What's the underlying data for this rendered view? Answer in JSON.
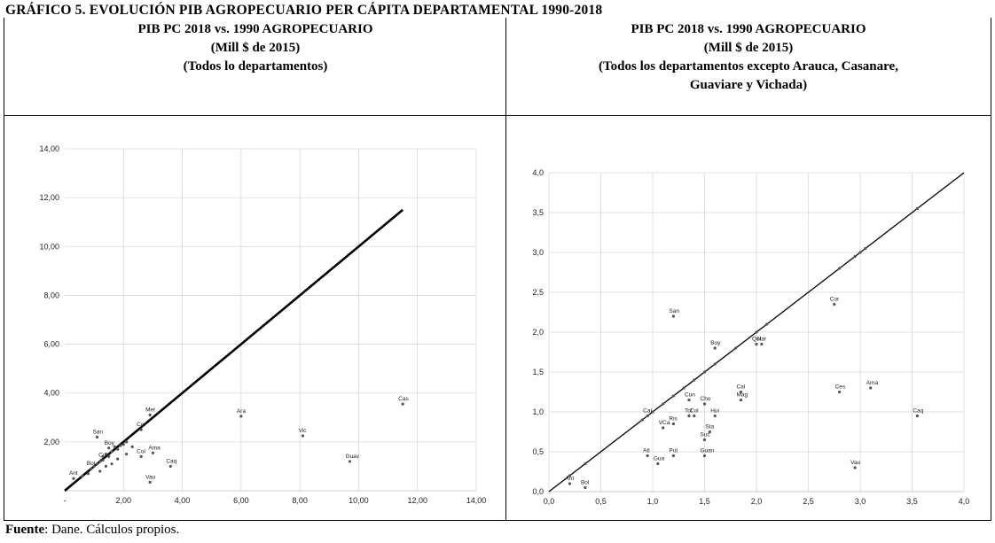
{
  "title": "GRÁFICO 5. EVOLUCIÓN PIB AGROPECUARIO PER CÁPITA DEPARTAMENTAL 1990-2018",
  "left_header": {
    "line1": "PIB PC 2018 vs. 1990 AGROPECUARIO",
    "line2": "(Mill $ de 2015)",
    "line3": "(Todos lo departamentos)"
  },
  "right_header": {
    "line1": "PIB PC 2018 vs. 1990 AGROPECUARIO",
    "line2": "(Mill $ de 2015)",
    "line3": "(Todos los departamentos excepto Arauca, Casanare,",
    "line4": "Guaviare y Vichada)"
  },
  "footer": {
    "source_label": "Fuente",
    "source_text": ": Dane. Cálculos propios."
  },
  "chart_data": [
    {
      "type": "scatter",
      "title": "",
      "xlabel": "",
      "ylabel": "",
      "xlim": [
        0,
        14
      ],
      "ylim": [
        0,
        14
      ],
      "x_ticks": [
        2,
        4,
        6,
        8,
        10,
        12,
        14
      ],
      "x_tick_labels": [
        "2,00",
        "4,00",
        "6,00",
        "8,00",
        "10,00",
        "12,00",
        "14,00"
      ],
      "x_first_label": "-",
      "y_ticks": [
        2,
        4,
        6,
        8,
        10,
        12,
        14
      ],
      "y_tick_labels": [
        "2,00",
        "4,00",
        "6,00",
        "8,00",
        "10,00",
        "12,00",
        "14,00"
      ],
      "grid": true,
      "reference_line": {
        "from": [
          0,
          0
        ],
        "to": [
          11.5,
          11.5
        ]
      },
      "points": [
        {
          "label": "Cas",
          "x": 11.5,
          "y": 3.55
        },
        {
          "label": "Guav",
          "x": 9.7,
          "y": 1.2
        },
        {
          "label": "Vic",
          "x": 8.1,
          "y": 2.25
        },
        {
          "label": "Ara",
          "x": 6.0,
          "y": 3.05
        },
        {
          "label": "Met",
          "x": 2.9,
          "y": 3.1
        },
        {
          "label": "Caq",
          "x": 3.6,
          "y": 1.0
        },
        {
          "label": "Ama",
          "x": 3.0,
          "y": 1.55
        },
        {
          "label": "Cor",
          "x": 2.6,
          "y": 2.5
        },
        {
          "label": "Vau",
          "x": 2.9,
          "y": 0.35
        },
        {
          "label": "Col",
          "x": 2.6,
          "y": 1.4
        },
        {
          "label": "San",
          "x": 1.1,
          "y": 2.2
        },
        {
          "label": "Boy",
          "x": 1.5,
          "y": 1.75
        },
        {
          "label": "Cun",
          "x": 1.3,
          "y": 1.25
        },
        {
          "label": "Ant",
          "x": 0.3,
          "y": 0.5
        },
        {
          "label": "Bol",
          "x": 0.9,
          "y": 0.9
        },
        {
          "label": "",
          "x": 1.0,
          "y": 1.0
        },
        {
          "label": "",
          "x": 1.1,
          "y": 1.1
        },
        {
          "label": "",
          "x": 1.2,
          "y": 1.2
        },
        {
          "label": "",
          "x": 1.3,
          "y": 1.4
        },
        {
          "label": "",
          "x": 1.4,
          "y": 1.5
        },
        {
          "label": "",
          "x": 1.5,
          "y": 1.4
        },
        {
          "label": "",
          "x": 1.6,
          "y": 1.6
        },
        {
          "label": "",
          "x": 1.7,
          "y": 1.8
        },
        {
          "label": "",
          "x": 1.8,
          "y": 1.7
        },
        {
          "label": "",
          "x": 1.9,
          "y": 1.85
        },
        {
          "label": "",
          "x": 2.0,
          "y": 1.9
        },
        {
          "label": "",
          "x": 2.1,
          "y": 2.0
        },
        {
          "label": "",
          "x": 0.8,
          "y": 0.7
        },
        {
          "label": "",
          "x": 0.6,
          "y": 0.6
        },
        {
          "label": "",
          "x": 1.2,
          "y": 0.8
        },
        {
          "label": "",
          "x": 1.4,
          "y": 1.0
        },
        {
          "label": "",
          "x": 1.6,
          "y": 1.1
        },
        {
          "label": "",
          "x": 1.8,
          "y": 1.3
        },
        {
          "label": "",
          "x": 2.1,
          "y": 1.5
        },
        {
          "label": "",
          "x": 2.3,
          "y": 1.8
        }
      ]
    },
    {
      "type": "scatter",
      "title": "",
      "xlabel": "",
      "ylabel": "",
      "xlim": [
        0,
        4
      ],
      "ylim": [
        0,
        4
      ],
      "x_ticks": [
        0,
        0.5,
        1,
        1.5,
        2,
        2.5,
        3,
        3.5,
        4
      ],
      "x_tick_labels": [
        "0,0",
        "0,5",
        "1,0",
        "1,5",
        "2,0",
        "2,5",
        "3,0",
        "3,5",
        "4,0"
      ],
      "y_ticks": [
        0,
        0.5,
        1,
        1.5,
        2,
        2.5,
        3,
        3.5,
        4
      ],
      "y_tick_labels": [
        "0,0",
        "0,5",
        "1,0",
        "1,5",
        "2,0",
        "2,5",
        "3,0",
        "3,5",
        "4,0"
      ],
      "grid": true,
      "reference_line": {
        "from": [
          0,
          0
        ],
        "to": [
          4,
          4
        ]
      },
      "points": [
        {
          "label": "San",
          "x": 1.2,
          "y": 2.2
        },
        {
          "label": "Boy",
          "x": 1.6,
          "y": 1.8
        },
        {
          "label": "Cor",
          "x": 2.75,
          "y": 2.35
        },
        {
          "label": "Qui",
          "x": 2.0,
          "y": 1.85
        },
        {
          "label": "Nar",
          "x": 2.05,
          "y": 1.85
        },
        {
          "label": "Cal",
          "x": 1.85,
          "y": 1.25
        },
        {
          "label": "Mag",
          "x": 1.85,
          "y": 1.15
        },
        {
          "label": "Ces",
          "x": 2.8,
          "y": 1.25
        },
        {
          "label": "Ama",
          "x": 3.1,
          "y": 1.3
        },
        {
          "label": "Caq",
          "x": 3.55,
          "y": 0.95
        },
        {
          "label": "Vau",
          "x": 2.95,
          "y": 0.3
        },
        {
          "label": "Cho",
          "x": 1.5,
          "y": 1.1
        },
        {
          "label": "Cun",
          "x": 1.35,
          "y": 1.15
        },
        {
          "label": "Hui",
          "x": 1.6,
          "y": 0.95
        },
        {
          "label": "Sta",
          "x": 1.55,
          "y": 0.75
        },
        {
          "label": "Suc",
          "x": 1.5,
          "y": 0.65
        },
        {
          "label": "Tol",
          "x": 1.35,
          "y": 0.95
        },
        {
          "label": "Col",
          "x": 1.4,
          "y": 0.95
        },
        {
          "label": "VCa",
          "x": 1.1,
          "y": 0.8
        },
        {
          "label": "Ris",
          "x": 1.2,
          "y": 0.85
        },
        {
          "label": "Atl",
          "x": 0.95,
          "y": 0.45
        },
        {
          "label": "Put",
          "x": 1.2,
          "y": 0.45
        },
        {
          "label": "Gua",
          "x": 1.05,
          "y": 0.35
        },
        {
          "label": "Guan",
          "x": 1.5,
          "y": 0.45
        },
        {
          "label": "Cal",
          "x": 0.95,
          "y": 0.95
        },
        {
          "label": "Ant",
          "x": 0.2,
          "y": 0.1
        },
        {
          "label": "Bol",
          "x": 0.35,
          "y": 0.05
        },
        {
          "label": "",
          "x": 0.2,
          "y": 0.2
        },
        {
          "label": "",
          "x": 0.35,
          "y": 0.35
        },
        {
          "label": "",
          "x": 0.9,
          "y": 0.9
        },
        {
          "label": "",
          "x": 1.0,
          "y": 1.0
        },
        {
          "label": "",
          "x": 1.1,
          "y": 1.1
        },
        {
          "label": "",
          "x": 1.2,
          "y": 1.2
        },
        {
          "label": "",
          "x": 1.3,
          "y": 1.3
        },
        {
          "label": "",
          "x": 1.4,
          "y": 1.4
        },
        {
          "label": "",
          "x": 1.5,
          "y": 1.5
        },
        {
          "label": "",
          "x": 1.6,
          "y": 1.6
        },
        {
          "label": "",
          "x": 1.8,
          "y": 1.8
        },
        {
          "label": "",
          "x": 2.0,
          "y": 2.0
        },
        {
          "label": "",
          "x": 2.1,
          "y": 2.1
        },
        {
          "label": "",
          "x": 2.8,
          "y": 2.8
        },
        {
          "label": "",
          "x": 2.95,
          "y": 2.95
        },
        {
          "label": "",
          "x": 3.0,
          "y": 3.0
        },
        {
          "label": "",
          "x": 3.05,
          "y": 3.05
        },
        {
          "label": "",
          "x": 3.55,
          "y": 3.55
        }
      ]
    }
  ]
}
